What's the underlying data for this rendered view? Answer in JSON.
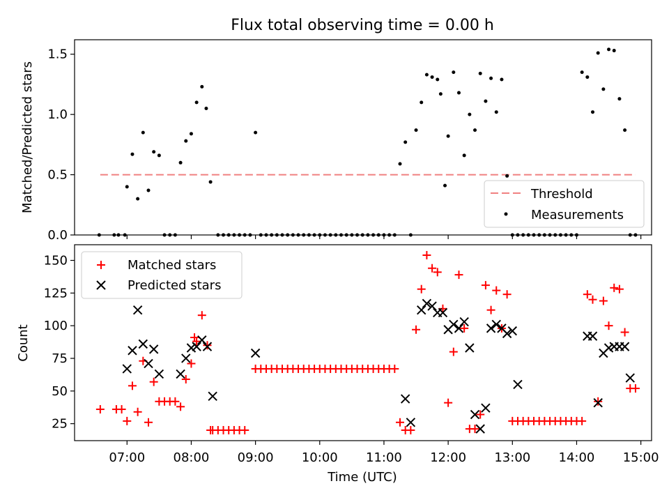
{
  "figure": {
    "title": "Flux total observing time = 0.00 h"
  },
  "chart_data": [
    {
      "type": "scatter",
      "ylabel": "Matched/Predicted stars",
      "ylim": [
        0,
        1.62
      ],
      "yticks": [
        0.0,
        0.5,
        1.0,
        1.5
      ],
      "ytick_labels": [
        "0.0",
        "0.5",
        "1.0",
        "1.5"
      ],
      "xlim": [
        "06:11",
        "15:10"
      ],
      "grid": false,
      "legend": "bottom-right",
      "series": [
        {
          "name": "Threshold",
          "kind": "dashed-line",
          "color": "#f08080",
          "x": [
            "06:35",
            "14:55"
          ],
          "y": [
            0.5,
            0.5
          ]
        },
        {
          "name": "Measurements",
          "kind": "points",
          "color": "#000000",
          "x": [
            "06:34",
            "06:48",
            "06:52",
            "06:58",
            "07:00",
            "07:05",
            "07:10",
            "07:15",
            "07:20",
            "07:25",
            "07:30",
            "07:35",
            "07:40",
            "07:45",
            "07:50",
            "07:55",
            "08:00",
            "08:05",
            "08:10",
            "08:14",
            "08:18",
            "08:25",
            "08:30",
            "08:35",
            "08:40",
            "08:45",
            "08:50",
            "08:55",
            "09:00",
            "09:05",
            "09:10",
            "09:15",
            "09:20",
            "09:25",
            "09:30",
            "09:35",
            "09:40",
            "09:45",
            "09:50",
            "09:55",
            "10:00",
            "10:05",
            "10:10",
            "10:15",
            "10:20",
            "10:25",
            "10:30",
            "10:35",
            "10:40",
            "10:45",
            "10:50",
            "10:55",
            "11:00",
            "11:05",
            "11:10",
            "11:15",
            "11:20",
            "11:25",
            "11:30",
            "11:35",
            "11:40",
            "11:45",
            "11:50",
            "11:53",
            "11:57",
            "12:00",
            "12:05",
            "12:10",
            "12:15",
            "12:20",
            "12:25",
            "12:30",
            "12:35",
            "12:40",
            "12:45",
            "12:50",
            "12:55",
            "13:00",
            "13:05",
            "13:10",
            "13:15",
            "13:20",
            "13:25",
            "13:30",
            "13:35",
            "13:40",
            "13:45",
            "13:50",
            "13:55",
            "14:00",
            "14:05",
            "14:10",
            "14:15",
            "14:20",
            "14:25",
            "14:30",
            "14:35",
            "14:40",
            "14:45",
            "14:50",
            "14:55"
          ],
          "y": [
            0.0,
            0.0,
            0.0,
            0.0,
            0.4,
            0.67,
            0.3,
            0.85,
            0.37,
            0.69,
            0.66,
            0.0,
            0.0,
            0.0,
            0.6,
            0.78,
            0.84,
            1.1,
            1.23,
            1.05,
            0.44,
            0.0,
            0.0,
            0.0,
            0.0,
            0.0,
            0.0,
            0.0,
            0.85,
            0.0,
            0.0,
            0.0,
            0.0,
            0.0,
            0.0,
            0.0,
            0.0,
            0.0,
            0.0,
            0.0,
            0.0,
            0.0,
            0.0,
            0.0,
            0.0,
            0.0,
            0.0,
            0.0,
            0.0,
            0.0,
            0.0,
            0.0,
            0.0,
            0.0,
            0.0,
            0.59,
            0.77,
            0.0,
            0.87,
            1.1,
            1.33,
            1.31,
            1.29,
            1.17,
            0.41,
            0.82,
            1.35,
            1.18,
            0.66,
            1.0,
            0.87,
            1.34,
            1.11,
            1.3,
            1.02,
            1.29,
            0.49,
            0.0,
            0.0,
            0.0,
            0.0,
            0.0,
            0.0,
            0.0,
            0.0,
            0.0,
            0.0,
            0.0,
            0.0,
            0.0,
            1.35,
            1.31,
            1.02,
            1.51,
            1.21,
            1.54,
            1.53,
            1.13,
            0.87,
            0.0,
            0.0
          ]
        }
      ]
    },
    {
      "type": "scatter",
      "xlabel": "Time (UTC)",
      "ylabel": "Count",
      "ylim": [
        12,
        162
      ],
      "yticks": [
        25,
        50,
        75,
        100,
        125,
        150
      ],
      "ytick_labels": [
        "25",
        "50",
        "75",
        "100",
        "125",
        "150"
      ],
      "xlim": [
        "06:11",
        "15:10"
      ],
      "xticks": [
        "07:00",
        "08:00",
        "09:00",
        "10:00",
        "11:00",
        "12:00",
        "13:00",
        "14:00",
        "15:00"
      ],
      "xtick_labels": [
        "07:00",
        "08:00",
        "09:00",
        "10:00",
        "11:00",
        "12:00",
        "13:00",
        "14:00",
        "15:00"
      ],
      "grid": false,
      "legend": "top-left",
      "series": [
        {
          "name": "Matched stars",
          "marker": "plus",
          "color": "#ff0000",
          "x": [
            "06:35",
            "06:50",
            "06:55",
            "07:00",
            "07:05",
            "07:10",
            "07:15",
            "07:20",
            "07:25",
            "07:30",
            "07:35",
            "07:40",
            "07:45",
            "07:50",
            "07:55",
            "08:00",
            "08:03",
            "08:05",
            "08:10",
            "08:15",
            "08:18",
            "08:20",
            "08:25",
            "08:30",
            "08:35",
            "08:40",
            "08:45",
            "08:50",
            "09:00",
            "09:05",
            "09:10",
            "09:15",
            "09:20",
            "09:25",
            "09:30",
            "09:35",
            "09:40",
            "09:45",
            "09:50",
            "09:55",
            "10:00",
            "10:05",
            "10:10",
            "10:15",
            "10:20",
            "10:25",
            "10:30",
            "10:35",
            "10:40",
            "10:45",
            "10:50",
            "10:55",
            "11:00",
            "11:05",
            "11:10",
            "11:15",
            "11:20",
            "11:25",
            "11:30",
            "11:35",
            "11:40",
            "11:45",
            "11:50",
            "11:55",
            "12:00",
            "12:05",
            "12:10",
            "12:15",
            "12:20",
            "12:25",
            "12:30",
            "12:35",
            "12:40",
            "12:45",
            "12:50",
            "12:55",
            "13:00",
            "13:05",
            "13:10",
            "13:15",
            "13:20",
            "13:25",
            "13:30",
            "13:35",
            "13:40",
            "13:45",
            "13:50",
            "13:55",
            "14:00",
            "14:05",
            "14:10",
            "14:15",
            "14:20",
            "14:25",
            "14:30",
            "14:35",
            "14:40",
            "14:45",
            "14:50",
            "14:55"
          ],
          "y": [
            36,
            36,
            36,
            27,
            54,
            34,
            73,
            26,
            57,
            42,
            42,
            42,
            42,
            38,
            59,
            71,
            91,
            88,
            108,
            85,
            20,
            20,
            20,
            20,
            20,
            20,
            20,
            20,
            67,
            67,
            67,
            67,
            67,
            67,
            67,
            67,
            67,
            67,
            67,
            67,
            67,
            67,
            67,
            67,
            67,
            67,
            67,
            67,
            67,
            67,
            67,
            67,
            67,
            67,
            67,
            26,
            20,
            20,
            97,
            128,
            154,
            144,
            141,
            113,
            41,
            80,
            139,
            98,
            21,
            21,
            32,
            131,
            112,
            127,
            98,
            124,
            27,
            27,
            27,
            27,
            27,
            27,
            27,
            27,
            27,
            27,
            27,
            27,
            27,
            27,
            124,
            120,
            42,
            119,
            100,
            129,
            128,
            95,
            52,
            52
          ]
        },
        {
          "name": "Predicted stars",
          "marker": "x",
          "color": "#000000",
          "x": [
            "07:00",
            "07:05",
            "07:10",
            "07:15",
            "07:20",
            "07:25",
            "07:30",
            "07:50",
            "07:55",
            "08:00",
            "08:05",
            "08:10",
            "08:15",
            "08:20",
            "09:00",
            "11:20",
            "11:25",
            "11:35",
            "11:40",
            "11:45",
            "11:50",
            "11:55",
            "12:00",
            "12:05",
            "12:10",
            "12:15",
            "12:20",
            "12:25",
            "12:30",
            "12:35",
            "12:40",
            "12:45",
            "12:50",
            "12:55",
            "13:00",
            "13:05",
            "14:10",
            "14:15",
            "14:20",
            "14:25",
            "14:30",
            "14:35",
            "14:40",
            "14:45",
            "14:50"
          ],
          "y": [
            67,
            81,
            112,
            86,
            71,
            82,
            63,
            63,
            75,
            83,
            84,
            89,
            84,
            46,
            79,
            44,
            26,
            112,
            117,
            115,
            110,
            110,
            97,
            101,
            98,
            103,
            83,
            32,
            21,
            37,
            98,
            101,
            98,
            94,
            96,
            55,
            92,
            92,
            41,
            79,
            83,
            84,
            84,
            84,
            60
          ]
        }
      ]
    }
  ]
}
